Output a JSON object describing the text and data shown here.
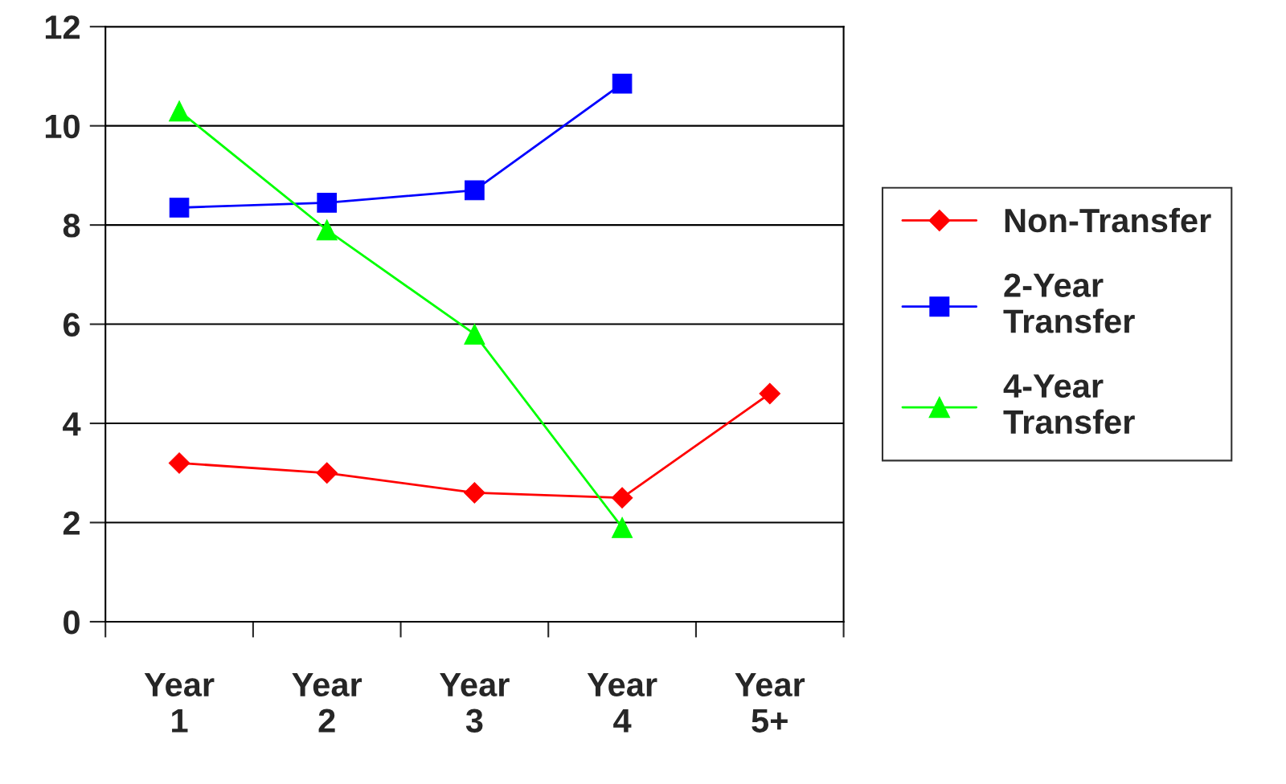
{
  "chart_data": {
    "type": "line",
    "categories": [
      "Year 1",
      "Year 2",
      "Year 3",
      "Year 4",
      "Year 5+"
    ],
    "series": [
      {
        "name": "Non-Transfer",
        "color": "#ff0000",
        "marker": "diamond",
        "values": [
          3.2,
          3.0,
          2.6,
          2.5,
          4.6
        ]
      },
      {
        "name": "2-Year Transfer",
        "color": "#0000ff",
        "marker": "square",
        "values": [
          8.35,
          8.45,
          8.7,
          10.85,
          null
        ]
      },
      {
        "name": "4-Year Transfer",
        "color": "#00ff00",
        "marker": "triangle",
        "values": [
          10.3,
          7.9,
          5.8,
          1.9,
          null
        ]
      }
    ],
    "ylim": [
      0,
      12
    ],
    "yticks": [
      0,
      2,
      4,
      6,
      8,
      10,
      12
    ],
    "grid": "y",
    "legend": "right",
    "line_style": "solid"
  }
}
